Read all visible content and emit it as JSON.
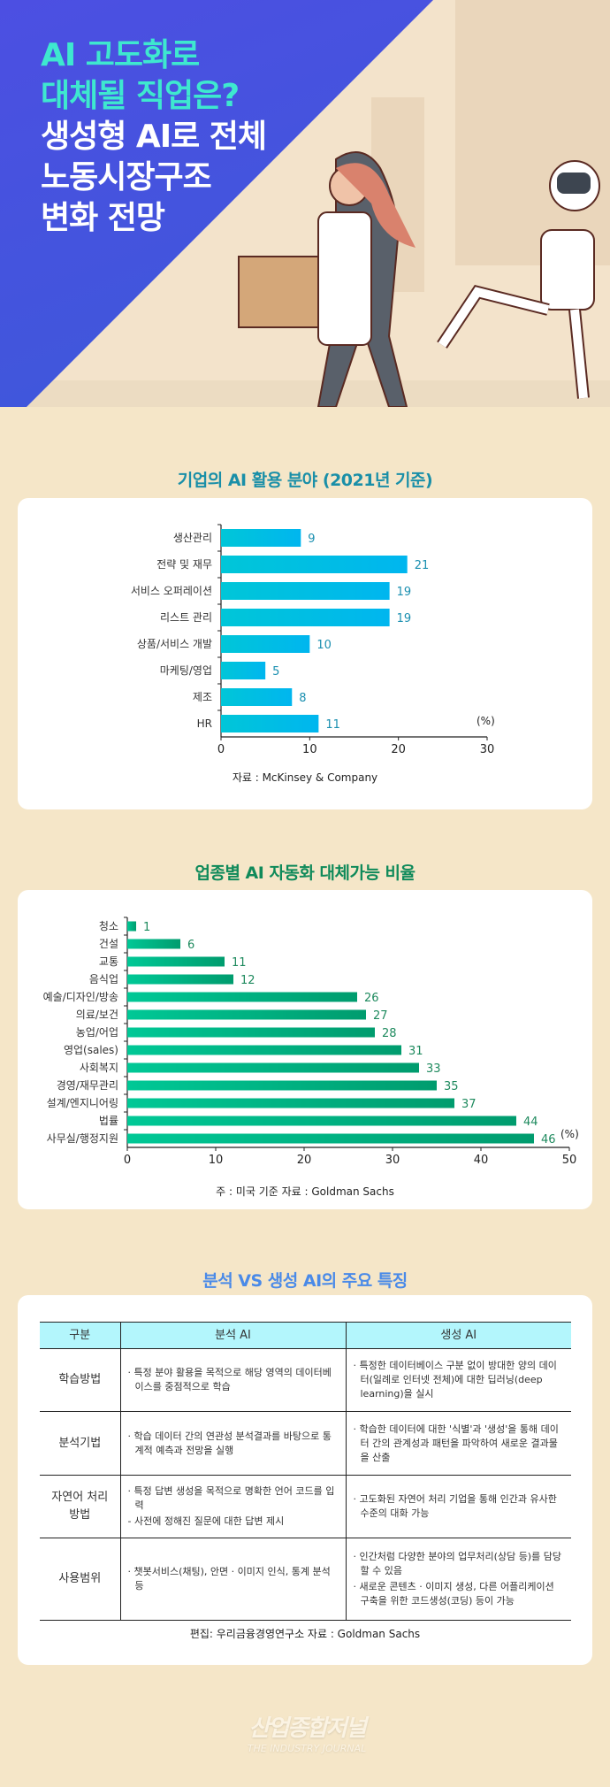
{
  "hero": {
    "title_lines": [
      "AI 고도화로",
      "대체될 직업은?",
      "생성형 AI로 전체",
      "노동시장구조",
      "변화 전망"
    ],
    "colors": {
      "accent": "#3ee8cf",
      "background": "#4a52e0"
    }
  },
  "chart1": {
    "title": "기업의 AI 활용 분야 (2021년 기준)",
    "source": "자료 : McKinsey & Company"
  },
  "chart2": {
    "title": "업종별 AI 자동화 대체가능 비율",
    "source": "주 : 미국 기준    자료 : Goldman Sachs"
  },
  "chart_data": [
    {
      "type": "bar",
      "orientation": "horizontal",
      "categories": [
        "생산관리",
        "전략 및 재무",
        "서비스 오퍼레이션",
        "리스트 관리",
        "상품/서비스 개발",
        "마케팅/영업",
        "제조",
        "HR"
      ],
      "values": [
        9,
        21,
        19,
        19,
        10,
        5,
        8,
        11
      ],
      "unit": "(%)",
      "xlim": [
        0,
        30
      ],
      "ticks": [
        0,
        10,
        20,
        30
      ],
      "color": "#00bde6",
      "label_color": "#1a8fb0"
    },
    {
      "type": "bar",
      "orientation": "horizontal",
      "categories": [
        "청소",
        "건설",
        "교통",
        "음식업",
        "예술/디자인/방송",
        "의료/보건",
        "농업/어업",
        "영업(sales)",
        "사회복지",
        "경영/재무관리",
        "설계/엔지니어링",
        "법률",
        "사무실/행정지원"
      ],
      "values": [
        1,
        6,
        11,
        12,
        26,
        27,
        28,
        31,
        33,
        35,
        37,
        44,
        46
      ],
      "unit": "(%)",
      "xlim": [
        0,
        50
      ],
      "ticks": [
        0,
        10,
        20,
        30,
        40,
        50
      ],
      "color": "#00b383",
      "label_color": "#1e8a5e"
    }
  ],
  "table": {
    "title": "분석 VS 생성 AI의 주요 특징",
    "headers": [
      "구분",
      "분석 AI",
      "생성 AI"
    ],
    "rows": [
      {
        "key": "학습방법",
        "analytic": [
          "· 특정 분야 활용을 목적으로 해당 영역의 데이터베이스를 중점적으로 학습"
        ],
        "generative": [
          "· 특정한 데이터베이스 구분 없이 방대한 양의 데이터(일례로 인터넷 전체)에 대한 딥러닝(deep learning)을 실시"
        ]
      },
      {
        "key": "분석기법",
        "analytic": [
          "· 학습 데이터 간의 연관성 분석결과를 바탕으로 통계적 예측과 전망을 실행"
        ],
        "generative": [
          "· 학습한 데이터에 대한 '식별'과 '생성'을 통해 데이터 간의 관계성과 패턴을 파악하여 새로운 결과물을 산출"
        ]
      },
      {
        "key": "자연어 처리 방법",
        "analytic": [
          "· 특정 답변 생성을 목적으로 명확한 언어 코드를 입력",
          "- 사전에 정해진 질문에 대한 답변 제시"
        ],
        "generative": [
          "· 고도화된 자연어 처리 기업을 통해 인간과 유사한 수준의 대화 가능"
        ]
      },
      {
        "key": "사용범위",
        "analytic": [
          "· 챗봇서비스(채팅), 안면 · 이미지 인식, 통계 분석 등"
        ],
        "generative": [
          "· 인간처럼 다양한 분야의 업무처리(상담 등)를 담당할 수 있음",
          "· 새로운 콘텐츠 · 이미지 생성, 다른 어플리케이션 구축을 위한 코드생성(코딩) 등이 가능"
        ]
      }
    ],
    "caption": "편집: 우리금융경영연구소   자료 : Goldman Sachs"
  },
  "footer": {
    "logo_text": "산업종합저널",
    "logo_subtext": "THE INDUSTRY JOURNAL"
  }
}
